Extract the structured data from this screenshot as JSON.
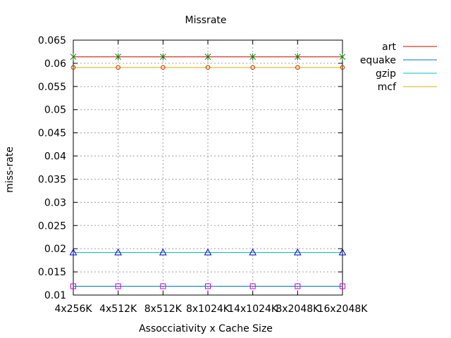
{
  "chart_data": {
    "type": "line",
    "title": "Missrate",
    "xlabel": "Assocciativity x Cache Size",
    "ylabel": "miss-rate",
    "categories": [
      "4x256K",
      "4x512K",
      "8x512K",
      "8x1024K",
      "14x1024K",
      "8x2048K",
      "16x2048K"
    ],
    "ylim": [
      0.01,
      0.065
    ],
    "yticks": [
      "0.01",
      "0.015",
      "0.02",
      "0.025",
      "0.03",
      "0.035",
      "0.04",
      "0.045",
      "0.05",
      "0.055",
      "0.06",
      "0.065"
    ],
    "grid": true,
    "legend_position": "right",
    "series": [
      {
        "name": "art",
        "color": "#cc0000",
        "marker": "x-cross",
        "values": [
          0.0614,
          0.0614,
          0.0614,
          0.0614,
          0.0614,
          0.0614,
          0.0614
        ]
      },
      {
        "name": "equake",
        "color": "#0072bd",
        "marker": "square",
        "values": [
          0.0119,
          0.0119,
          0.0119,
          0.0119,
          0.0119,
          0.0119,
          0.0119
        ]
      },
      {
        "name": "gzip",
        "color": "#00c0c0",
        "marker": "triangle",
        "values": [
          0.0192,
          0.0192,
          0.0192,
          0.0192,
          0.0192,
          0.0192,
          0.0192
        ]
      },
      {
        "name": "mcf",
        "color": "#d4b000",
        "marker": "circle",
        "values": [
          0.0591,
          0.0591,
          0.0591,
          0.0591,
          0.0591,
          0.0591,
          0.0591
        ]
      }
    ]
  }
}
